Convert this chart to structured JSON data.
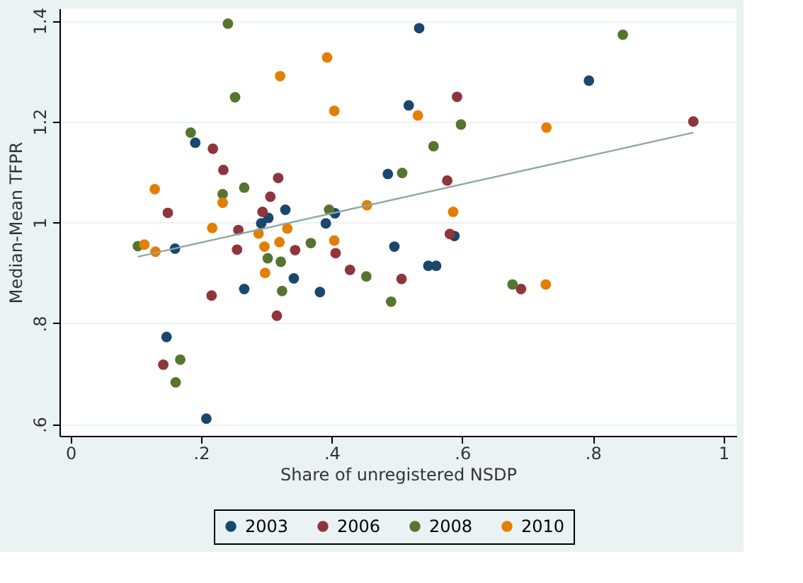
{
  "chart_data": {
    "type": "scatter",
    "xlabel": "Share of unregistered NSDP",
    "ylabel": "Median-Mean TFPR",
    "xlim": [
      -0.017,
      1.02
    ],
    "ylim": [
      0.577,
      1.424
    ],
    "xticks": [
      0,
      {
        "value": 0.2,
        "label": ".2"
      },
      {
        "value": 0.4,
        "label": ".4"
      },
      {
        "value": 0.6,
        "label": ".6"
      },
      {
        "value": 0.8,
        "label": ".8"
      },
      1
    ],
    "yticks": [
      {
        "value": 0.6,
        "label": ".6"
      },
      {
        "value": 0.8,
        "label": ".8"
      },
      1,
      {
        "value": 1.2,
        "label": "1.2"
      },
      {
        "value": 1.4,
        "label": "1.4"
      }
    ],
    "grid": "y",
    "legend": "bottom",
    "marker": "circle",
    "series": [
      {
        "name": "2003",
        "color": "#1a476f",
        "x": [
          0.534,
          0.794,
          0.518,
          0.191,
          0.486,
          0.329,
          0.303,
          0.292,
          0.391,
          0.405,
          0.588,
          0.16,
          0.496,
          0.548,
          0.56,
          0.342,
          0.266,
          0.382,
          0.147,
          0.208
        ],
        "values": [
          1.385,
          1.281,
          1.232,
          1.158,
          1.096,
          1.025,
          1.009,
          0.998,
          0.998,
          1.018,
          0.973,
          0.948,
          0.952,
          0.914,
          0.914,
          0.889,
          0.868,
          0.862,
          0.773,
          0.611
        ]
      },
      {
        "name": "2006",
        "color": "#90353b",
        "x": [
          0.592,
          0.954,
          0.218,
          0.234,
          0.318,
          0.577,
          0.306,
          0.149,
          0.294,
          0.257,
          0.581,
          0.255,
          0.344,
          0.406,
          0.428,
          0.507,
          0.69,
          0.216,
          0.316,
          0.142
        ],
        "values": [
          1.249,
          1.2,
          1.146,
          1.104,
          1.088,
          1.083,
          1.051,
          1.019,
          1.021,
          0.985,
          0.977,
          0.946,
          0.945,
          0.939,
          0.906,
          0.888,
          0.868,
          0.855,
          0.815,
          0.718
        ]
      },
      {
        "name": "2008",
        "color": "#55752f",
        "x": [
          0.241,
          0.846,
          0.252,
          0.598,
          0.184,
          0.556,
          0.508,
          0.266,
          0.233,
          0.396,
          0.103,
          0.368,
          0.302,
          0.322,
          0.453,
          0.677,
          0.324,
          0.491,
          0.168,
          0.161
        ],
        "values": [
          1.394,
          1.372,
          1.248,
          1.194,
          1.178,
          1.151,
          1.098,
          1.069,
          1.056,
          1.025,
          0.953,
          0.959,
          0.929,
          0.922,
          0.893,
          0.877,
          0.864,
          0.843,
          0.728,
          0.683
        ]
      },
      {
        "name": "2010",
        "color": "#e37e00",
        "x": [
          0.393,
          0.321,
          0.404,
          0.532,
          0.729,
          0.129,
          0.233,
          0.454,
          0.586,
          0.217,
          0.332,
          0.288,
          0.404,
          0.113,
          0.297,
          0.32,
          0.13,
          0.298,
          0.728
        ],
        "values": [
          1.327,
          1.29,
          1.221,
          1.212,
          1.188,
          1.066,
          1.039,
          1.034,
          1.021,
          0.989,
          0.988,
          0.978,
          0.964,
          0.956,
          0.952,
          0.961,
          0.942,
          0.9,
          0.877
        ]
      },
      {
        "type": "line",
        "marker": "none",
        "color": "#8fa8a0",
        "x": [
          0.103,
          0.954
        ],
        "values": [
          0.932,
          1.178
        ]
      }
    ]
  }
}
